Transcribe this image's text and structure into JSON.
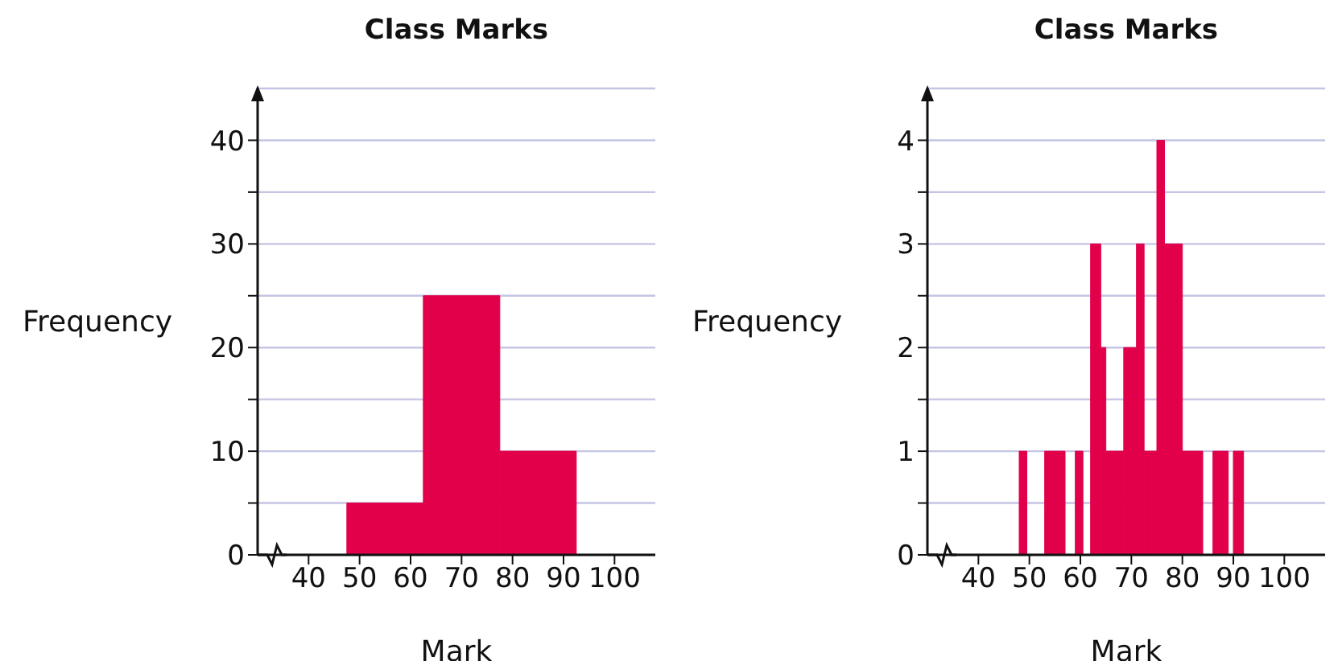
{
  "chart_data": [
    {
      "type": "histogram",
      "title": "Class Marks",
      "xlabel": "Mark",
      "ylabel": "Frequency",
      "bins": [
        47.5,
        62.5,
        77.5,
        92.5
      ],
      "values": [
        5,
        25,
        10
      ],
      "color": "#e2004a",
      "xlim": [
        30,
        108
      ],
      "xticks": [
        40,
        50,
        60,
        70,
        80,
        90,
        100
      ],
      "ylim": [
        0,
        45
      ],
      "yticks": [
        0,
        {
          "value": 5,
          "label": null
        },
        10,
        {
          "value": 15,
          "label": null
        },
        20,
        {
          "value": 25,
          "label": null
        },
        30,
        {
          "value": 35,
          "label": null
        },
        40
      ],
      "grid": "y"
    },
    {
      "type": "histogram",
      "title": "Class Marks",
      "xlabel": "Mark",
      "ylabel": "Frequency",
      "bins": [
        48,
        49.5,
        53,
        57,
        59,
        60.5,
        62,
        64,
        65,
        68.5,
        71,
        72.5,
        75,
        76.5,
        80,
        84,
        86,
        89,
        90,
        92
      ],
      "values": [
        1,
        0,
        1,
        0,
        1,
        0,
        3,
        2,
        1,
        2,
        3,
        1,
        4,
        3,
        1,
        0,
        1,
        0,
        1
      ],
      "color": "#e2004a",
      "xlim": [
        30,
        108
      ],
      "xticks": [
        40,
        50,
        60,
        70,
        80,
        90,
        100
      ],
      "ylim": [
        0,
        4.5
      ],
      "yticks": [
        0,
        {
          "value": 0.5,
          "label": null
        },
        1,
        {
          "value": 1.5,
          "label": null
        },
        2,
        {
          "value": 2.5,
          "label": null
        },
        3,
        {
          "value": 3.5,
          "label": null
        },
        4
      ],
      "grid": "y"
    }
  ]
}
